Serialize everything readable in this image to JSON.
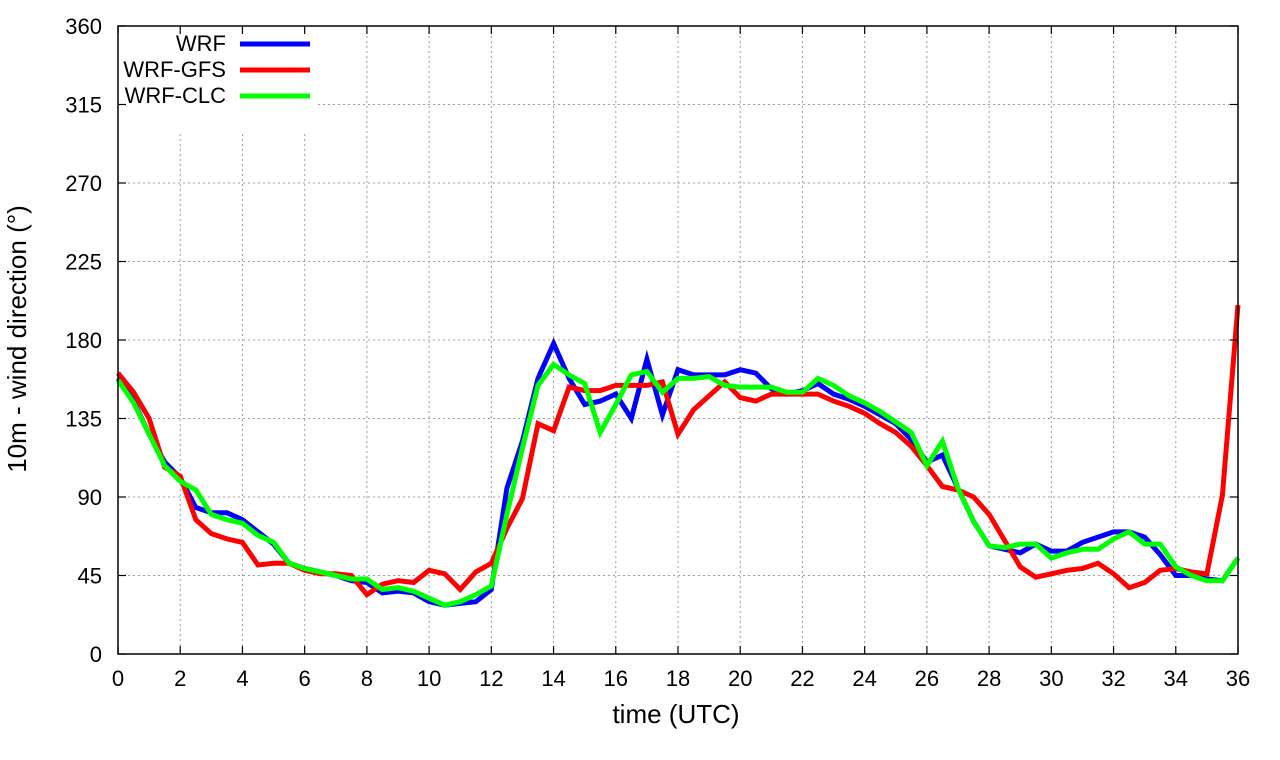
{
  "chart_data": {
    "type": "line",
    "title": "",
    "xlabel": "time (UTC)",
    "ylabel": "10m - wind direction (°)",
    "xlim": [
      0,
      36
    ],
    "ylim": [
      0,
      360
    ],
    "xticks": [
      0,
      2,
      4,
      6,
      8,
      10,
      12,
      14,
      16,
      18,
      20,
      22,
      24,
      26,
      28,
      30,
      32,
      34,
      36
    ],
    "yticks": [
      0,
      45,
      90,
      135,
      180,
      225,
      270,
      315,
      360
    ],
    "grid": true,
    "legend_position": "top-left",
    "series": [
      {
        "name": "WRF",
        "color": "#0000ff",
        "x": [
          0,
          0.5,
          1,
          1.5,
          2,
          2.5,
          3,
          3.5,
          4,
          4.5,
          5,
          5.5,
          6,
          6.5,
          7,
          7.5,
          8,
          8.5,
          9,
          9.5,
          10,
          10.5,
          11,
          11.5,
          12,
          12.5,
          13,
          13.5,
          14,
          14.5,
          15,
          15.5,
          16,
          16.5,
          17,
          17.5,
          18,
          18.5,
          19,
          19.5,
          20,
          20.5,
          21,
          21.5,
          22,
          22.5,
          23,
          23.5,
          24,
          24.5,
          25,
          25.5,
          26,
          26.5,
          27,
          27.5,
          28,
          28.5,
          29,
          29.5,
          30,
          30.5,
          31,
          31.5,
          32,
          32.5,
          33,
          33.5,
          34,
          34.5,
          35,
          35.5,
          36
        ],
        "y": [
          158,
          145,
          126,
          110,
          101,
          84,
          81,
          81,
          77,
          70,
          63,
          52,
          49,
          47,
          45,
          42,
          41,
          35,
          36,
          35,
          30,
          28,
          29,
          30,
          37,
          95,
          122,
          158,
          178,
          158,
          143,
          145,
          149,
          135,
          169,
          137,
          163,
          160,
          160,
          160,
          163,
          161,
          152,
          149,
          151,
          155,
          149,
          146,
          142,
          137,
          132,
          123,
          110,
          114,
          95,
          76,
          62,
          60,
          58,
          63,
          59,
          59,
          64,
          67,
          70,
          70,
          67,
          57,
          45,
          45,
          43,
          42,
          55
        ]
      },
      {
        "name": "WRF-GFS",
        "color": "#ff0000",
        "x": [
          0,
          0.5,
          1,
          1.5,
          2,
          2.5,
          3,
          3.5,
          4,
          4.5,
          5,
          5.5,
          6,
          6.5,
          7,
          7.5,
          8,
          8.5,
          9,
          9.5,
          10,
          10.5,
          11,
          11.5,
          12,
          12.5,
          13,
          13.5,
          14,
          14.5,
          15,
          15.5,
          16,
          16.5,
          17,
          17.5,
          18,
          18.5,
          19,
          19.5,
          20,
          20.5,
          21,
          21.5,
          22,
          22.5,
          23,
          23.5,
          24,
          24.5,
          25,
          25.5,
          26,
          26.5,
          27,
          27.5,
          28,
          28.5,
          29,
          29.5,
          30,
          30.5,
          31,
          31.5,
          32,
          32.5,
          33,
          33.5,
          34,
          34.5,
          35,
          35.5,
          36
        ],
        "y": [
          161,
          150,
          135,
          107,
          102,
          77,
          69,
          66,
          64,
          51,
          52,
          52,
          48,
          46,
          46,
          45,
          34,
          40,
          42,
          41,
          48,
          46,
          37,
          47,
          52,
          72,
          89,
          132,
          128,
          153,
          151,
          151,
          154,
          154,
          154,
          156,
          126,
          140,
          148,
          156,
          147,
          145,
          149,
          149,
          149,
          149,
          145,
          142,
          138,
          132,
          127,
          119,
          108,
          96,
          94,
          90,
          80,
          65,
          50,
          44,
          46,
          48,
          49,
          52,
          46,
          38,
          41,
          48,
          49,
          47,
          46,
          91,
          200
        ]
      },
      {
        "name": "WRF-CLC",
        "color": "#00ff00",
        "x": [
          0,
          0.5,
          1,
          1.5,
          2,
          2.5,
          3,
          3.5,
          4,
          4.5,
          5,
          5.5,
          6,
          6.5,
          7,
          7.5,
          8,
          8.5,
          9,
          9.5,
          10,
          10.5,
          11,
          11.5,
          12,
          12.5,
          13,
          13.5,
          14,
          14.5,
          15,
          15.5,
          16,
          16.5,
          17,
          17.5,
          18,
          18.5,
          19,
          19.5,
          20,
          20.5,
          21,
          21.5,
          22,
          22.5,
          23,
          23.5,
          24,
          24.5,
          25,
          25.5,
          26,
          26.5,
          27,
          27.5,
          28,
          28.5,
          29,
          29.5,
          30,
          30.5,
          31,
          31.5,
          32,
          32.5,
          33,
          33.5,
          34,
          34.5,
          35,
          35.5,
          36
        ],
        "y": [
          157,
          144,
          126,
          108,
          99,
          94,
          80,
          77,
          75,
          68,
          64,
          52,
          49,
          47,
          45,
          43,
          43,
          37,
          38,
          36,
          32,
          28,
          30,
          34,
          39,
          80,
          118,
          154,
          166,
          160,
          155,
          127,
          143,
          160,
          162,
          150,
          158,
          158,
          159,
          154,
          153,
          153,
          153,
          150,
          150,
          158,
          154,
          148,
          144,
          139,
          133,
          127,
          108,
          122,
          95,
          76,
          62,
          61,
          63,
          63,
          55,
          58,
          60,
          60,
          66,
          70,
          63,
          63,
          50,
          45,
          42,
          42,
          55
        ]
      }
    ]
  }
}
